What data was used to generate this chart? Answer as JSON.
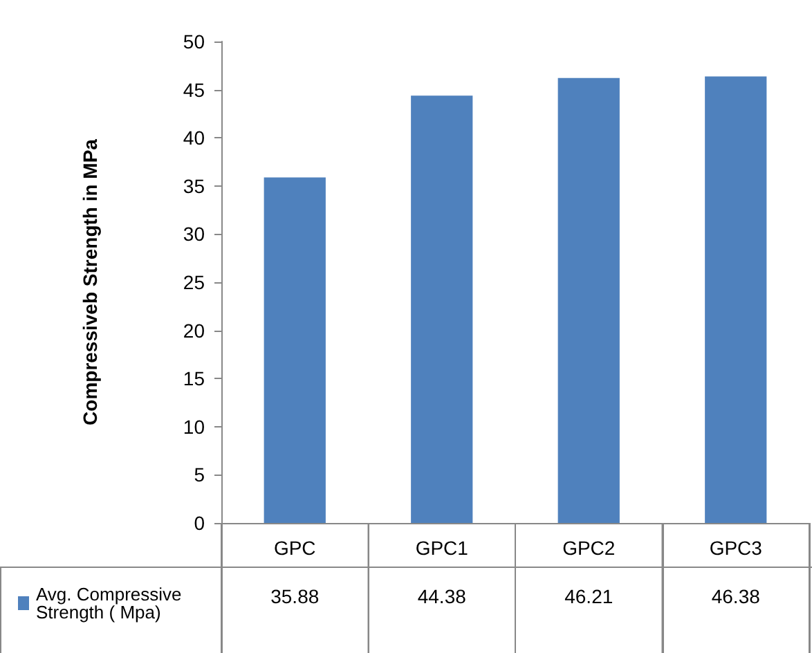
{
  "chart_data": {
    "type": "bar",
    "ylabel": "Compressiveb Strength in MPa",
    "categories": [
      "GPC",
      "GPC1",
      "GPC2",
      "GPC3"
    ],
    "series": [
      {
        "name": "Avg. Compressive Strength ( Mpa)",
        "color": "#4f81bd",
        "values": [
          35.88,
          44.38,
          46.21,
          46.38
        ]
      }
    ],
    "ylim": [
      0,
      50
    ],
    "yticks": [
      0,
      5,
      10,
      15,
      20,
      25,
      30,
      35,
      40,
      45,
      50
    ],
    "grid": false,
    "legend": "bottom left",
    "data_labels": true
  }
}
